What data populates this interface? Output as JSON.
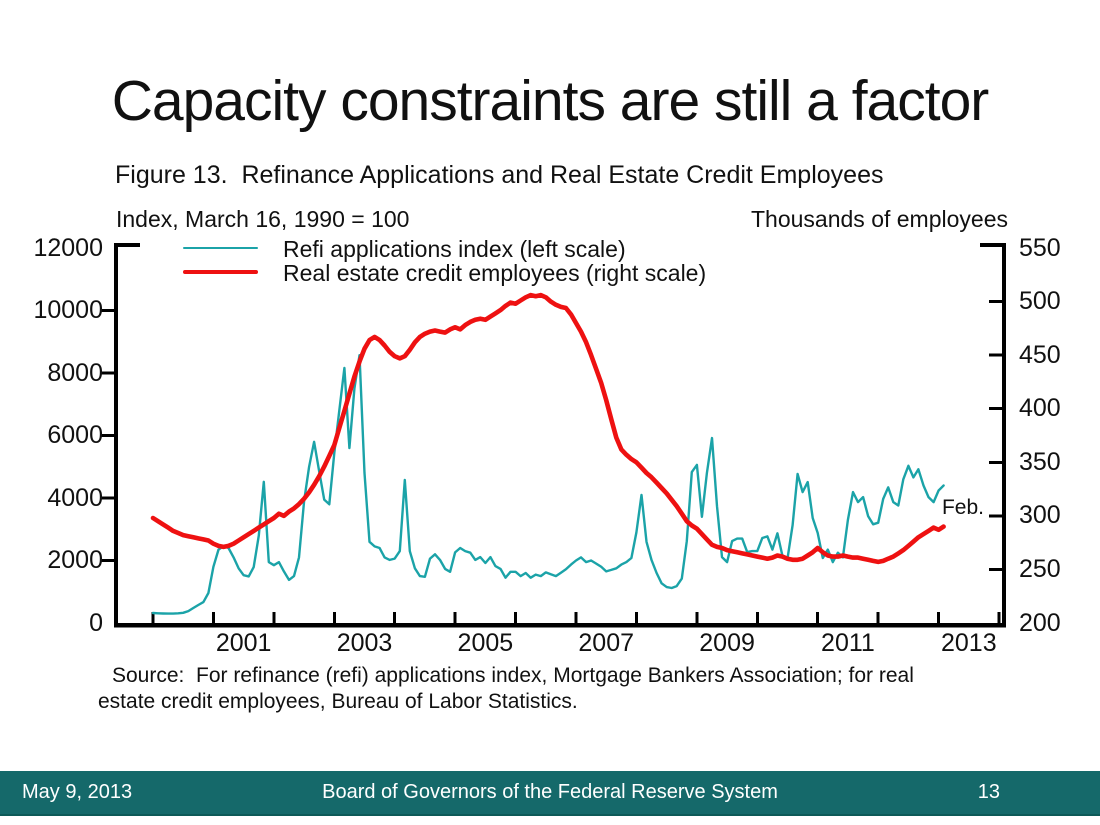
{
  "slide": {
    "title": "Capacity constraints are still a factor",
    "footer": {
      "date": "May 9, 2013",
      "org": "Board of Governors of the Federal Reserve System",
      "page": "13",
      "bar_color": "#15696a"
    }
  },
  "figure": {
    "caption": "Figure 13.  Refinance Applications and Real Estate Credit Employees",
    "left_axis_caption": "Index, March 16, 1990 = 100",
    "right_axis_caption": "Thousands of employees",
    "end_annotation": "Feb.",
    "source_line1": "Source:  For refinance (refi) applications index, Mortgage Bankers Association; for real",
    "source_line2": "estate credit employees, Bureau of Labor Statistics."
  },
  "chart_data": {
    "type": "line",
    "title": "Figure 13.  Refinance Applications and Real Estate Credit Employees",
    "x_unit": "monthly, decimal years",
    "x_start_year": 2000,
    "x_end_label": "Feb. 2013",
    "frame_color": "#000000",
    "left_axis": {
      "label": "Index, March 16, 1990 = 100",
      "range": [
        0,
        12000
      ],
      "ticks": [
        0,
        2000,
        4000,
        6000,
        8000,
        10000,
        12000
      ]
    },
    "right_axis": {
      "label": "Thousands of employees",
      "range": [
        200,
        550
      ],
      "ticks": [
        200,
        250,
        300,
        350,
        400,
        450,
        500,
        550
      ]
    },
    "x_axis": {
      "tick_years": [
        2000,
        2001,
        2002,
        2003,
        2004,
        2005,
        2006,
        2007,
        2008,
        2009,
        2010,
        2011,
        2012,
        2013,
        2014
      ],
      "label_years": [
        2001,
        2003,
        2005,
        2007,
        2009,
        2011,
        2013
      ]
    },
    "legend_position": "top-left-inside",
    "grid": false,
    "series": [
      {
        "name": "Refi applications index (left scale)",
        "axis": "left",
        "color": "#1ba3a8",
        "stroke_width": 2.4,
        "values": [
          320,
          312,
          305,
          300,
          302,
          310,
          325,
          380,
          480,
          575,
          670,
          960,
          1800,
          2350,
          2460,
          2400,
          2100,
          1750,
          1530,
          1490,
          1790,
          2800,
          4520,
          1950,
          1850,
          1950,
          1650,
          1380,
          1500,
          2100,
          3900,
          5000,
          5800,
          4850,
          3950,
          3800,
          5440,
          6800,
          8160,
          5600,
          7500,
          8570,
          4800,
          2600,
          2450,
          2400,
          2100,
          2020,
          2060,
          2300,
          4580,
          2300,
          1750,
          1500,
          1480,
          2060,
          2200,
          2020,
          1730,
          1640,
          2260,
          2400,
          2300,
          2250,
          2020,
          2110,
          1920,
          2110,
          1820,
          1730,
          1450,
          1640,
          1640,
          1500,
          1600,
          1450,
          1550,
          1500,
          1620,
          1560,
          1500,
          1610,
          1720,
          1870,
          2000,
          2100,
          1950,
          2000,
          1900,
          1800,
          1650,
          1700,
          1750,
          1870,
          1950,
          2080,
          2900,
          4100,
          2600,
          2020,
          1600,
          1270,
          1150,
          1120,
          1180,
          1420,
          2620,
          4830,
          5060,
          3400,
          4800,
          5920,
          3740,
          2110,
          1950,
          2620,
          2700,
          2700,
          2270,
          2300,
          2300,
          2720,
          2770,
          2350,
          2870,
          2140,
          2060,
          3130,
          4770,
          4190,
          4510,
          3360,
          2880,
          2080,
          2350,
          1950,
          2250,
          2100,
          3300,
          4190,
          3870,
          4030,
          3420,
          3160,
          3210,
          3970,
          4340,
          3870,
          3760,
          4600,
          5030,
          4660,
          4920,
          4400,
          4030,
          3870,
          4240,
          4400
        ]
      },
      {
        "name": "Real estate credit employees (right scale)",
        "axis": "right",
        "color": "#ee1111",
        "stroke_width": 4.6,
        "values": [
          298,
          295,
          292,
          289,
          286,
          284,
          282,
          281,
          280,
          279,
          278,
          277,
          274,
          272,
          271,
          272,
          274,
          277,
          280,
          283,
          286,
          289,
          292,
          295,
          298,
          302,
          300,
          304,
          307,
          311,
          316,
          322,
          329,
          337,
          346,
          356,
          366,
          382,
          398,
          414,
          430,
          444,
          456,
          464,
          467,
          464,
          459,
          453,
          449,
          447,
          449,
          455,
          462,
          467,
          470,
          472,
          473,
          472,
          471,
          474,
          476,
          474,
          478,
          481,
          483,
          484,
          483,
          486,
          489,
          492,
          496,
          499,
          498,
          501,
          504,
          506,
          505,
          506,
          504,
          500,
          497,
          495,
          494,
          488,
          480,
          472,
          462,
          450,
          437,
          424,
          408,
          390,
          373,
          362,
          357,
          353,
          350,
          345,
          340,
          336,
          331,
          326,
          321,
          315,
          309,
          302,
          295,
          291,
          288,
          283,
          278,
          273,
          271,
          270,
          268,
          267,
          266,
          265,
          264,
          263,
          262,
          261,
          260,
          261,
          263,
          262,
          260,
          259,
          259,
          260,
          263,
          266,
          270,
          266,
          263,
          262,
          262,
          263,
          262,
          261,
          261,
          260,
          259,
          258,
          257,
          258,
          260,
          262,
          265,
          268,
          272,
          276,
          280,
          283,
          286,
          289,
          287,
          290
        ]
      }
    ]
  }
}
